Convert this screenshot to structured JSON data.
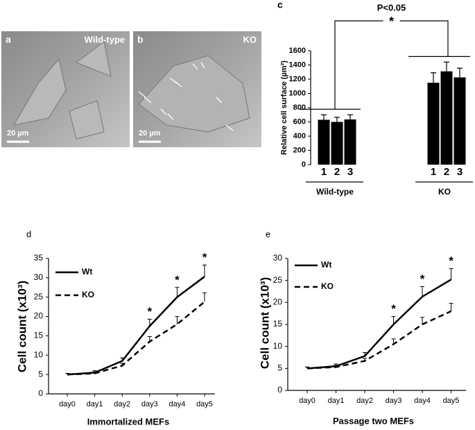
{
  "images": [
    {
      "letter": "a",
      "label": "Wild-type",
      "scale": "20 µm"
    },
    {
      "letter": "b",
      "label": "KO",
      "scale": "20 µm"
    }
  ],
  "chart_data": [
    {
      "type": "bar",
      "letter": "c",
      "ylabel": "Relative cell surface (µm²)",
      "color": "#000000",
      "ylim": [
        0,
        1600
      ],
      "yticks": [
        0,
        200,
        400,
        600,
        800,
        1000,
        1200,
        1400,
        1600
      ],
      "groups": [
        {
          "name": "Wild-type",
          "categories": [
            "1",
            "2",
            "3"
          ],
          "values": [
            630,
            600,
            635
          ],
          "errors": [
            70,
            65,
            65
          ]
        },
        {
          "name": "KO",
          "categories": [
            "1",
            "2",
            "3"
          ],
          "values": [
            1150,
            1310,
            1225
          ],
          "errors": [
            140,
            130,
            130
          ]
        }
      ],
      "significance": {
        "label": "P<0.05",
        "marker": "*"
      }
    },
    {
      "type": "line",
      "letter": "d",
      "ylabel": "Cell count (x10³)",
      "xlabel": "Immortalized MEFs",
      "categories": [
        "day0",
        "day1",
        "day2",
        "day3",
        "day4",
        "day5"
      ],
      "ylim": [
        0,
        35
      ],
      "yticks": [
        0,
        5,
        10,
        15,
        20,
        25,
        30,
        35
      ],
      "series": [
        {
          "name": "Wt",
          "color": "#000000",
          "dash": false,
          "values": [
            5,
            5.5,
            8.5,
            17.5,
            25,
            30.3
          ],
          "errors": [
            0.3,
            0.5,
            0.8,
            1.8,
            2.5,
            3
          ]
        },
        {
          "name": "KO",
          "color": "#000000",
          "dash": true,
          "values": [
            5,
            5.3,
            7.3,
            13.5,
            18,
            23.8
          ],
          "errors": [
            0.3,
            0.4,
            0.6,
            1.3,
            2,
            2.3
          ]
        }
      ],
      "annotations": [
        {
          "text": "*",
          "x": "day3"
        },
        {
          "text": "*",
          "x": "day4"
        },
        {
          "text": "*",
          "x": "day5"
        }
      ]
    },
    {
      "type": "line",
      "letter": "e",
      "ylabel": "Cell count (x10³)",
      "xlabel": "Passage two MEFs",
      "categories": [
        "day0",
        "day1",
        "day2",
        "day3",
        "day4",
        "day5"
      ],
      "ylim": [
        0,
        30
      ],
      "yticks": [
        0,
        5,
        10,
        15,
        20,
        25,
        30
      ],
      "series": [
        {
          "name": "Wt",
          "color": "#000000",
          "dash": false,
          "values": [
            5,
            5.5,
            7.8,
            15,
            21.3,
            25.2
          ],
          "errors": [
            0.3,
            0.5,
            0.8,
            1.8,
            2.3,
            2.5
          ]
        },
        {
          "name": "KO",
          "color": "#000000",
          "dash": true,
          "values": [
            5,
            5.3,
            6.7,
            10.5,
            15,
            18
          ],
          "errors": [
            0.3,
            0.4,
            0.6,
            1.2,
            1.6,
            1.8
          ]
        }
      ],
      "annotations": [
        {
          "text": "*",
          "x": "day3"
        },
        {
          "text": "*",
          "x": "day4"
        },
        {
          "text": "*",
          "x": "day5"
        }
      ]
    }
  ]
}
